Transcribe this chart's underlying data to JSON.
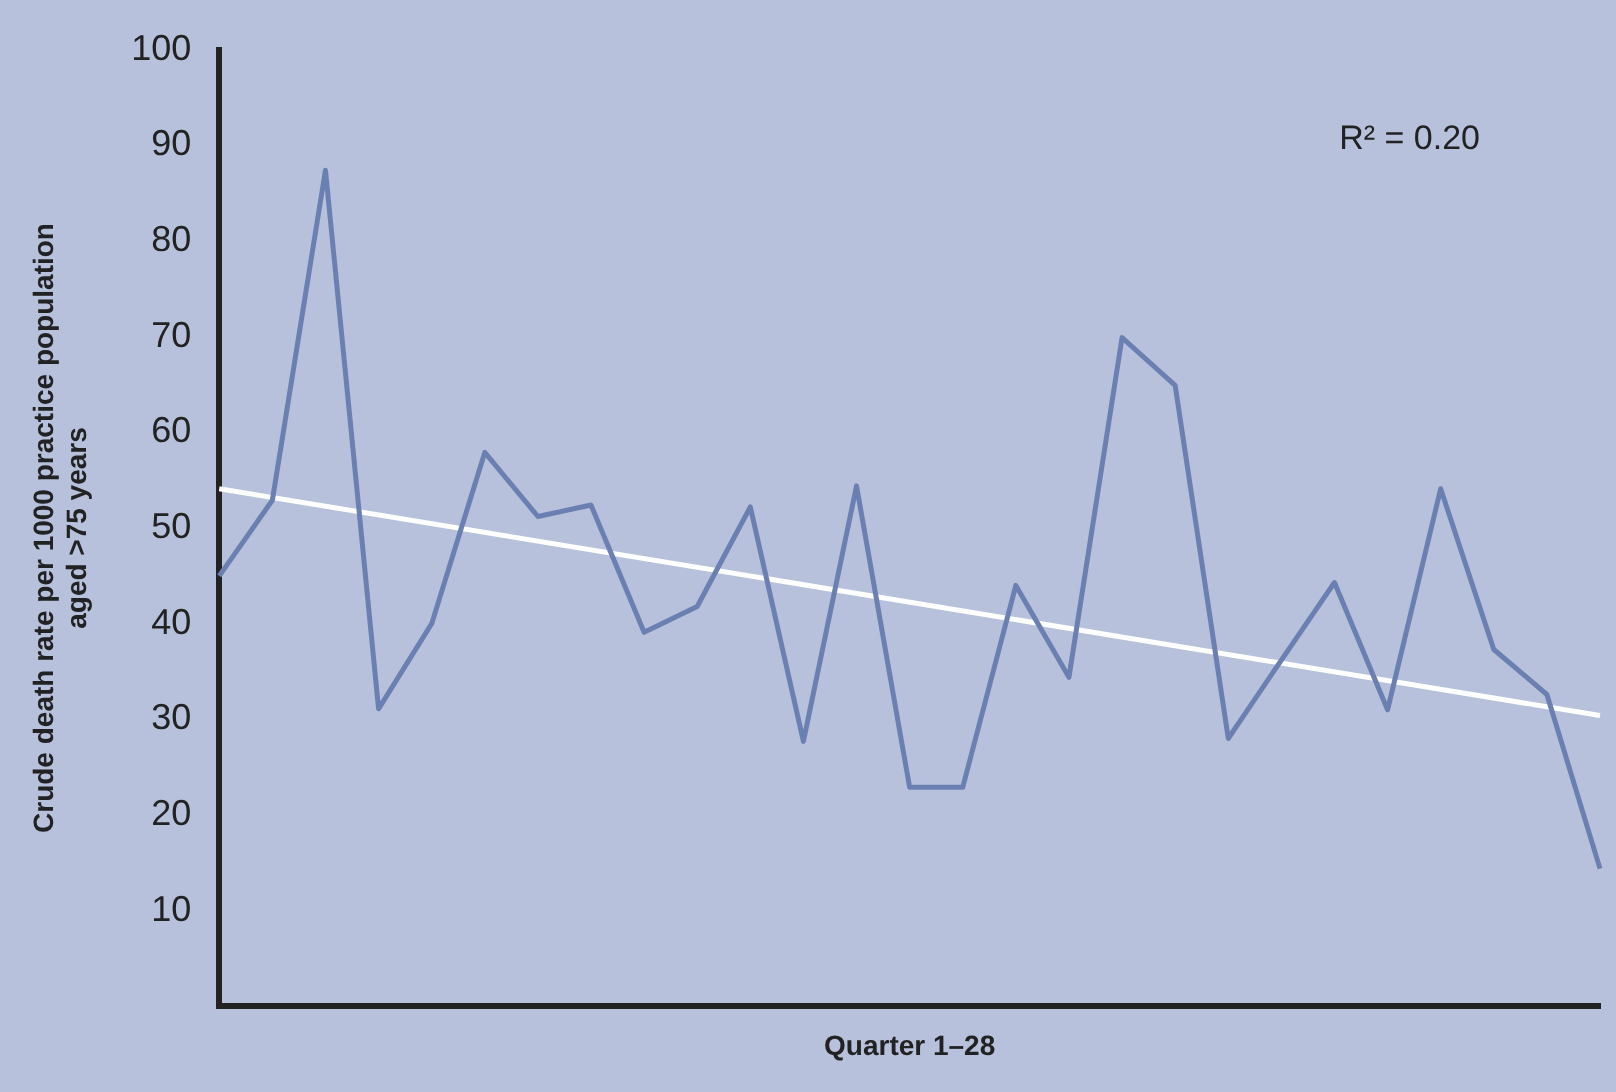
{
  "chart_data": {
    "type": "line",
    "xlabel": "Quarter 1–28",
    "ylabel": "Crude death rate per 1000 practice population\naged >75 years",
    "categories": [
      null,
      null,
      null,
      null,
      null,
      null,
      null,
      null,
      null,
      null,
      null,
      null,
      null,
      null,
      null,
      null,
      null,
      null,
      null,
      null,
      null,
      null,
      null,
      null,
      null,
      null,
      null
    ],
    "series": [
      {
        "color": "#6b80b2",
        "values": [
          45.0,
          52.9,
          87.4,
          31.1,
          40.0,
          57.9,
          51.2,
          52.4,
          39.1,
          41.8,
          52.2,
          27.7,
          54.4,
          22.9,
          22.9,
          44.0,
          34.4,
          69.9,
          64.9,
          28.0,
          36.2,
          44.3,
          31.0,
          54.1,
          37.3,
          32.6,
          14.4
        ]
      },
      {
        "type": "line",
        "color": "#ffffff",
        "values": [
          54.1,
          null,
          null,
          null,
          null,
          null,
          null,
          null,
          null,
          null,
          null,
          null,
          null,
          null,
          null,
          null,
          null,
          null,
          null,
          null,
          null,
          null,
          null,
          null,
          null,
          null,
          30.4
        ]
      }
    ],
    "ylim": [
      0,
      100
    ],
    "yticks": [
      10,
      20,
      30,
      40,
      50,
      60,
      70,
      80,
      90,
      100
    ],
    "grid": false,
    "legend": false,
    "marker": "none",
    "line_style": "solid",
    "tick_labels": "y",
    "annotations": [
      "R² = 0.20"
    ]
  }
}
